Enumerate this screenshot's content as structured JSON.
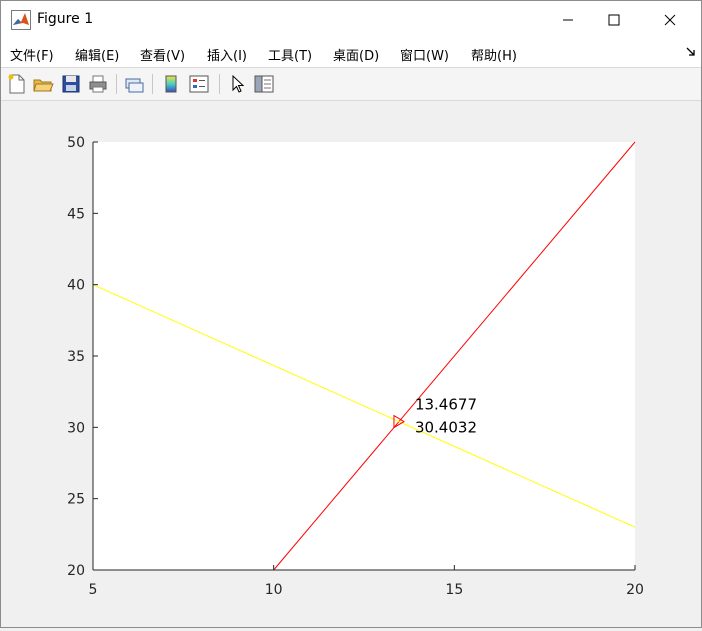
{
  "window": {
    "title": "Figure 1"
  },
  "menu": [
    {
      "label": "文件(F)"
    },
    {
      "label": "编辑(E)"
    },
    {
      "label": "查看(V)"
    },
    {
      "label": "插入(I)"
    },
    {
      "label": "工具(T)"
    },
    {
      "label": "桌面(D)"
    },
    {
      "label": "窗口(W)"
    },
    {
      "label": "帮助(H)"
    }
  ],
  "toolbar": [
    {
      "icon": "new-figure-icon"
    },
    {
      "icon": "open-file-icon"
    },
    {
      "icon": "save-icon"
    },
    {
      "icon": "print-icon"
    },
    {
      "icon": "link-plot-icon"
    },
    {
      "icon": "colorbar-icon"
    },
    {
      "icon": "legend-icon"
    },
    {
      "icon": "pointer-icon"
    },
    {
      "icon": "property-inspector-icon"
    }
  ],
  "colors": {
    "line1": "#ff0000",
    "line2": "#ffff00",
    "axes_bg": "#ffffff",
    "figure_bg": "#f0f0f0"
  },
  "chart_data": {
    "type": "line",
    "xlim": [
      5,
      20
    ],
    "ylim": [
      20,
      50
    ],
    "xticks": [
      5,
      10,
      15,
      20
    ],
    "yticks": [
      20,
      25,
      30,
      35,
      40,
      45,
      50
    ],
    "grid": false,
    "series": [
      {
        "color": "#ff0000",
        "x": [
          10,
          20
        ],
        "y": [
          20,
          50
        ]
      },
      {
        "color": "#ffff00",
        "x": [
          5,
          20
        ],
        "y": [
          40,
          23
        ]
      }
    ],
    "marker": {
      "shape": "triangle-right",
      "color": "#ff0000",
      "x": 13.4677,
      "y": 30.4032
    },
    "annotation": {
      "x": 13.4677,
      "y": 30.4032,
      "lines": [
        "13.4677",
        "30.4032"
      ]
    }
  }
}
